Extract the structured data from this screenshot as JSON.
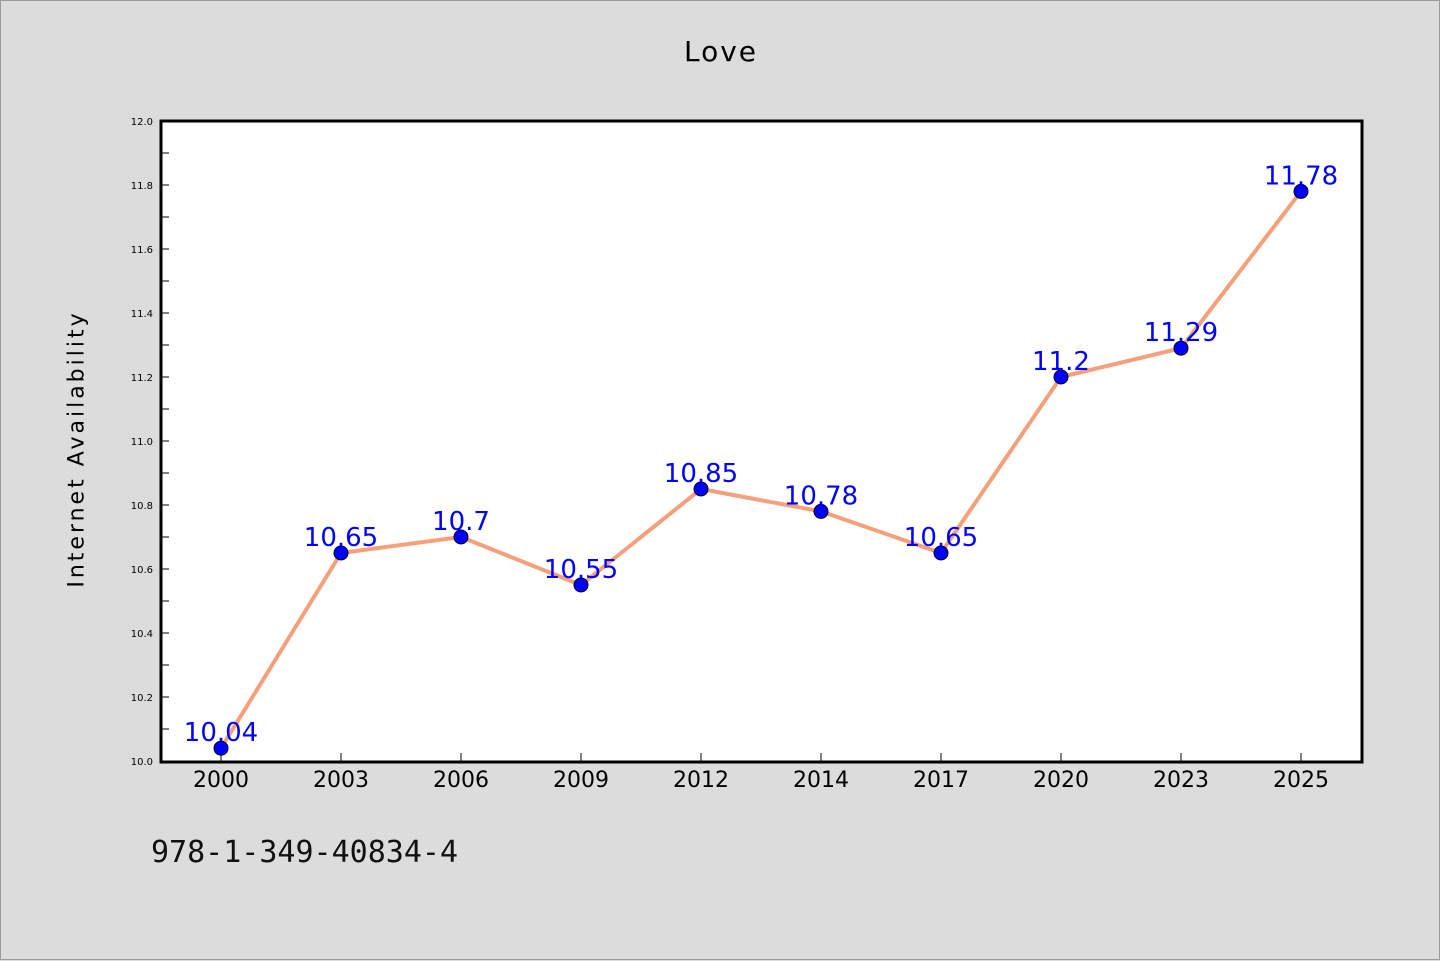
{
  "chart_data": {
    "type": "line",
    "title": "Love",
    "xlabel": "",
    "ylabel": "Internet Availability",
    "categories": [
      "2000",
      "2003",
      "2006",
      "2009",
      "2012",
      "2014",
      "2017",
      "2020",
      "2023",
      "2025"
    ],
    "series": [
      {
        "values": [
          10.04,
          10.65,
          10.7,
          10.55,
          10.85,
          10.78,
          10.65,
          11.2,
          11.29,
          11.78
        ],
        "data_labels": [
          "10.04",
          "10.65",
          "10.7",
          "10.55",
          "10.85",
          "10.78",
          "10.65",
          "11.2",
          "11.29",
          "11.78"
        ]
      }
    ],
    "ylim": [
      10.0,
      12.0
    ],
    "yticks": [
      "10.0",
      "10.2",
      "10.4",
      "10.6",
      "10.8",
      "11.0",
      "11.2",
      "11.4",
      "11.6",
      "11.8",
      "12.0"
    ],
    "grid": false,
    "colors": {
      "line": "#f4a07a",
      "marker": "#0000ff",
      "label": "#0000ff"
    }
  },
  "footer": {
    "code": "978-1-349-40834-4"
  }
}
